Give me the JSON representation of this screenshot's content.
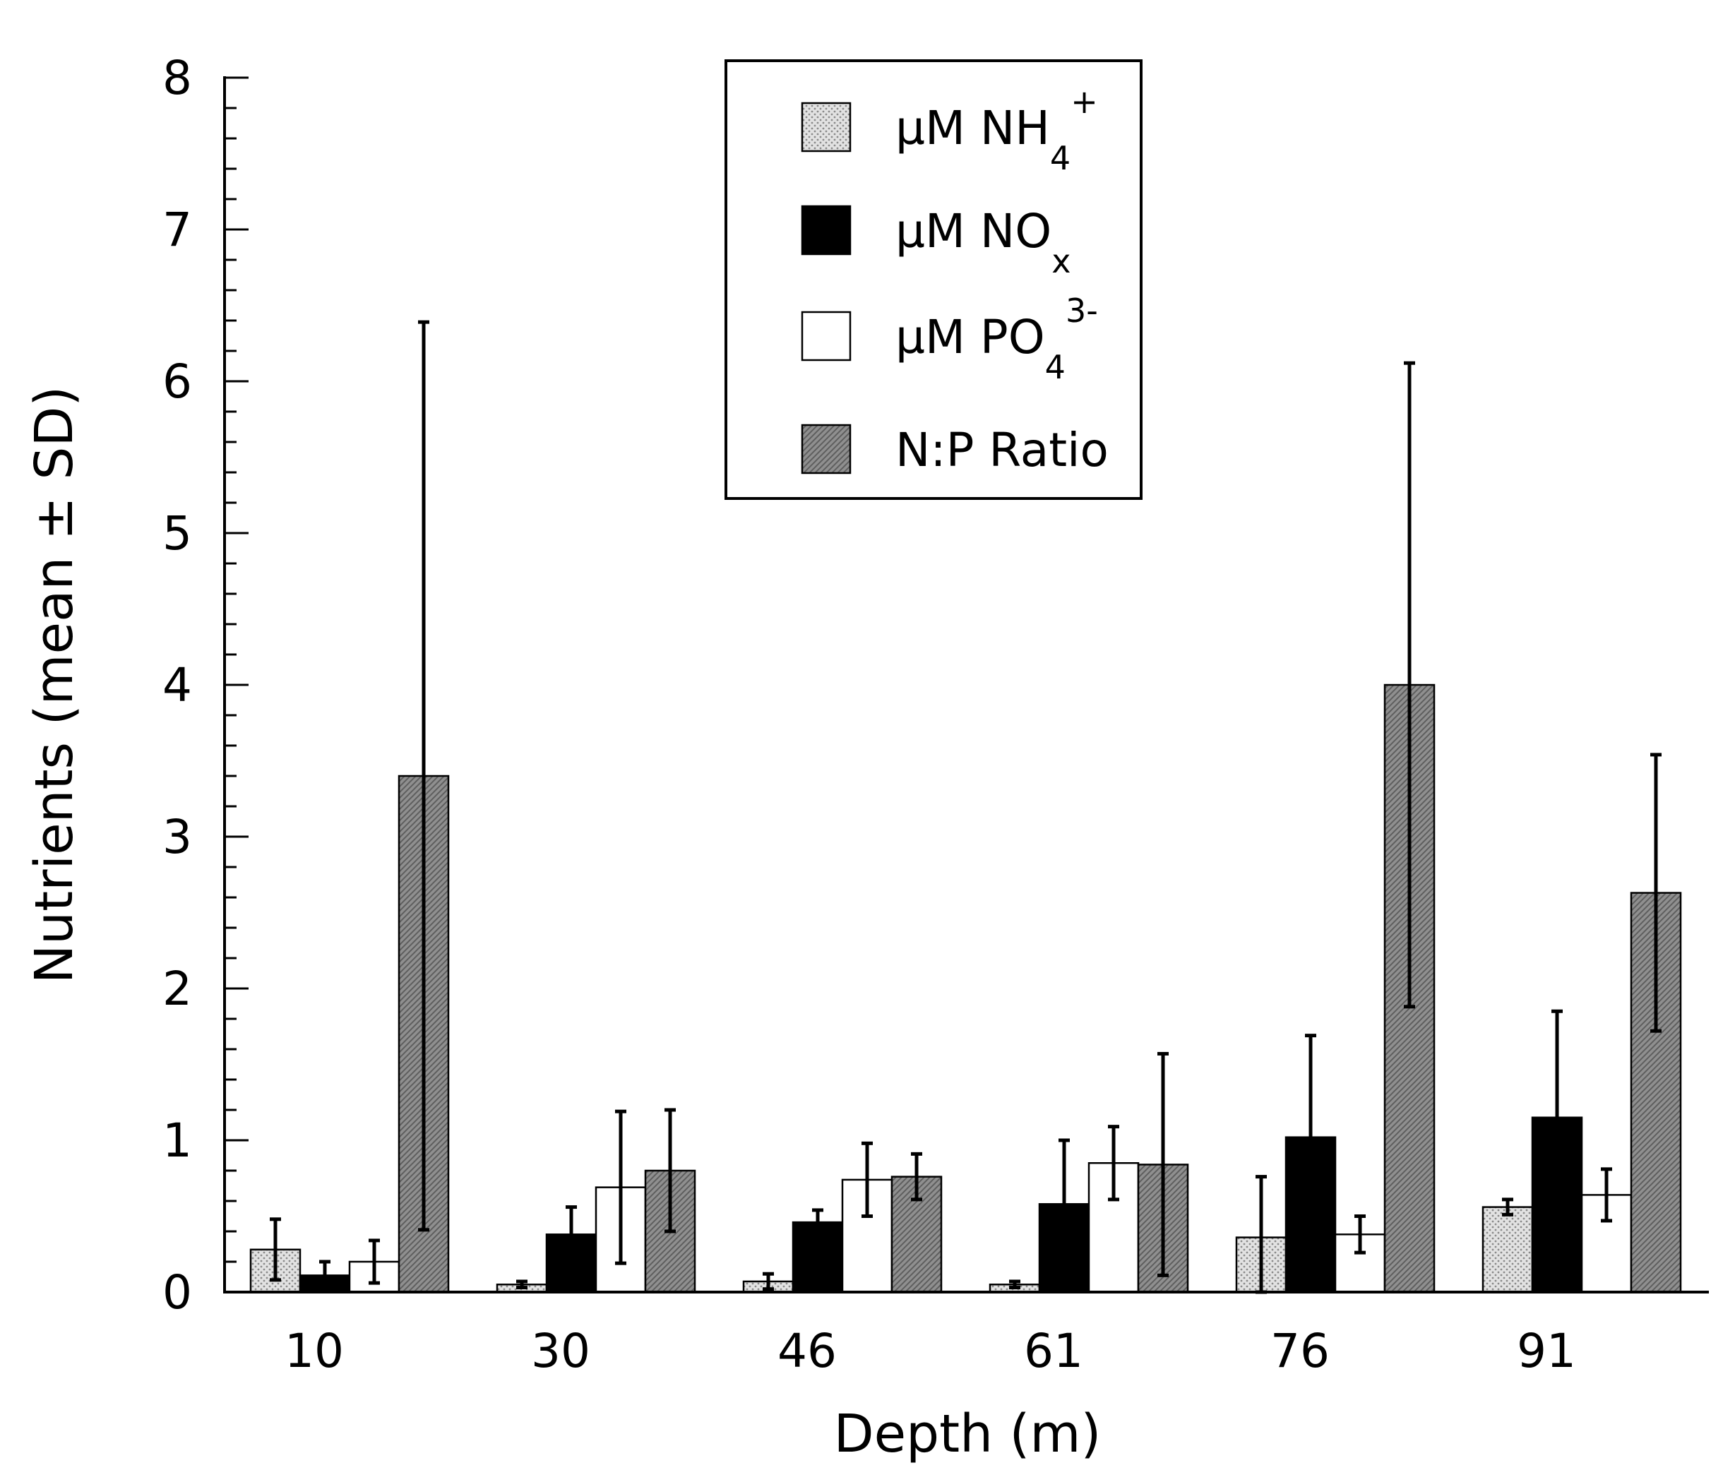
{
  "chart_data": {
    "type": "bar",
    "title": "",
    "xlabel": "Depth (m)",
    "ylabel": "Nutrients (mean ± SD)",
    "ylim": [
      0,
      8
    ],
    "y_ticks": [
      "0",
      "1",
      "2",
      "3",
      "4",
      "5",
      "6",
      "7",
      "8"
    ],
    "categories": [
      "10",
      "30",
      "46",
      "61",
      "76",
      "91"
    ],
    "grid": false,
    "legend_position": "top-center",
    "series": [
      {
        "name": "µM NH4+",
        "legend": {
          "prefix": "µM NH",
          "sub": "4",
          "sup": "+"
        },
        "pattern": "dotted",
        "values": [
          0.28,
          0.05,
          0.07,
          0.05,
          0.36,
          0.56
        ],
        "sd": [
          0.2,
          0.02,
          0.05,
          0.02,
          0.4,
          0.05
        ]
      },
      {
        "name": "µM NOx",
        "legend": {
          "prefix": "µM NO",
          "sub": "x",
          "sup": ""
        },
        "pattern": "solid-black",
        "values": [
          0.11,
          0.38,
          0.46,
          0.58,
          1.02,
          1.15
        ],
        "sd": [
          0.09,
          0.18,
          0.08,
          0.42,
          0.67,
          0.7
        ]
      },
      {
        "name": "µM PO43-",
        "legend": {
          "prefix": "µM PO",
          "sub": "4",
          "sup": "3-"
        },
        "pattern": "white",
        "values": [
          0.2,
          0.69,
          0.74,
          0.85,
          0.38,
          0.64
        ],
        "sd": [
          0.14,
          0.5,
          0.24,
          0.24,
          0.12,
          0.17
        ]
      },
      {
        "name": "N:P Ratio",
        "legend": {
          "prefix": "N:P Ratio",
          "sub": "",
          "sup": ""
        },
        "pattern": "gray-hatched",
        "values": [
          3.4,
          0.8,
          0.76,
          0.84,
          4.0,
          2.63
        ],
        "sd": [
          2.99,
          0.4,
          0.15,
          0.73,
          2.12,
          0.91
        ]
      }
    ]
  },
  "colors": {
    "nh4_fill": "#e2e2e2",
    "nh4_dot": "#8a8a8a",
    "nox_fill": "#000000",
    "po4_fill": "#ffffff",
    "np_fill": "#8f8f8f",
    "np_hatch": "#5e5e5e",
    "axis": "#000000"
  }
}
